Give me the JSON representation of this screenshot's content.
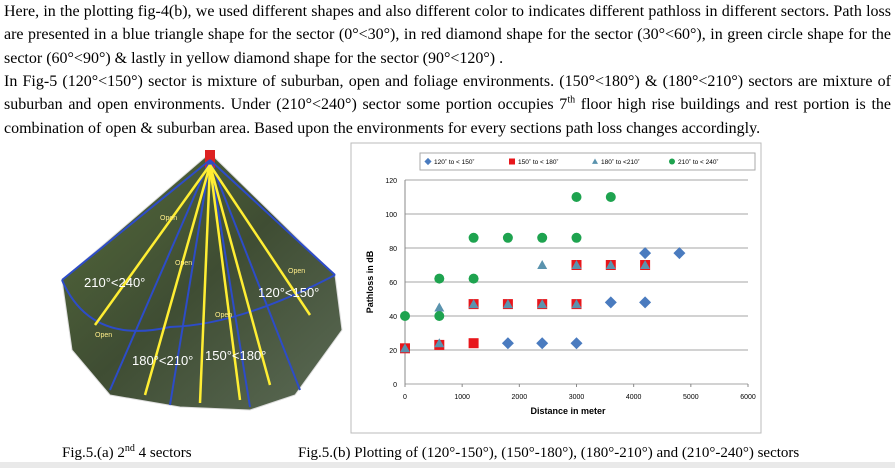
{
  "paragraph_1": "Here, in the plotting fig-4(b), we used different shapes and also different color to indicates different pathloss in different sectors. Path loss are presented in a blue triangle shape for the sector (0°<30°), in red diamond shape for the sector (30°<60°), in green circle shape for the sector (60°<90°)  & lastly in yellow diamond shape for the sector (90°<120°) .",
  "paragraph_2": {
    "before": "In Fig-5 (120°<150°) sector is mixture of suburban, open and foliage environments.  (150°<180°) & (180°<210°) sectors are mixture of suburban and open environments. Under (210°<240°) sector some portion occupies 7",
    "sup": "th",
    "after": " floor high rise buildings and rest portion is the combination of open & suburban area. Based upon the environments for every sections path loss changes accordingly."
  },
  "figure_a": {
    "labels": [
      "210°<240°",
      "120°<150°",
      "180°<210°",
      "150°<180°"
    ],
    "open_labels": [
      "Open",
      "Open",
      "Open",
      "Open",
      "Open"
    ],
    "caption": {
      "before": "Fig.5.(a) 2",
      "sup": "nd",
      "after": " 4 sectors"
    }
  },
  "figure_b_caption": "Fig.5.(b) Plotting of (120°-150°), (150°-180°), (180°-210°) and (210°-240°) sectors",
  "chart_data": {
    "type": "scatter",
    "x_label": "Distance in meter",
    "y_label": "Pathloss in dB",
    "xlim": [
      0,
      6000
    ],
    "ylim": [
      0,
      120
    ],
    "xticks": [
      0,
      1000,
      2000,
      3000,
      4000,
      5000,
      6000
    ],
    "yticks": [
      0,
      20,
      40,
      60,
      80,
      100,
      120
    ],
    "grid": true,
    "legend": "top",
    "series": [
      {
        "name": "120˚ to < 150˚",
        "color": "#4a7bbf",
        "marker": "diamond",
        "x": [
          1800,
          2400,
          3000,
          3600,
          4200,
          4200,
          4800
        ],
        "values": [
          24,
          24,
          24,
          48,
          48,
          77,
          77
        ]
      },
      {
        "name": "150˚ to < 180˚",
        "color": "#e8161b",
        "marker": "square",
        "x": [
          0,
          600,
          1200,
          1200,
          1800,
          2400,
          3000,
          3000,
          3600,
          4200
        ],
        "values": [
          21,
          23,
          24,
          47,
          47,
          47,
          47,
          70,
          70,
          70
        ]
      },
      {
        "name": "180˚ to <210˚",
        "color": "#5a93ae",
        "marker": "triangle",
        "x": [
          0,
          600,
          600,
          1200,
          1800,
          2400,
          2400,
          3000,
          3000,
          3600,
          4200
        ],
        "values": [
          21,
          24,
          45,
          47,
          47,
          47,
          70,
          47,
          70,
          70,
          70
        ]
      },
      {
        "name": "210˚ to < 240˚",
        "color": "#1ea34f",
        "marker": "circle",
        "x": [
          0,
          600,
          600,
          1200,
          1200,
          1800,
          2400,
          3000,
          3000,
          3600
        ],
        "values": [
          40,
          40,
          62,
          62,
          86,
          86,
          86,
          86,
          110,
          110
        ]
      }
    ]
  }
}
